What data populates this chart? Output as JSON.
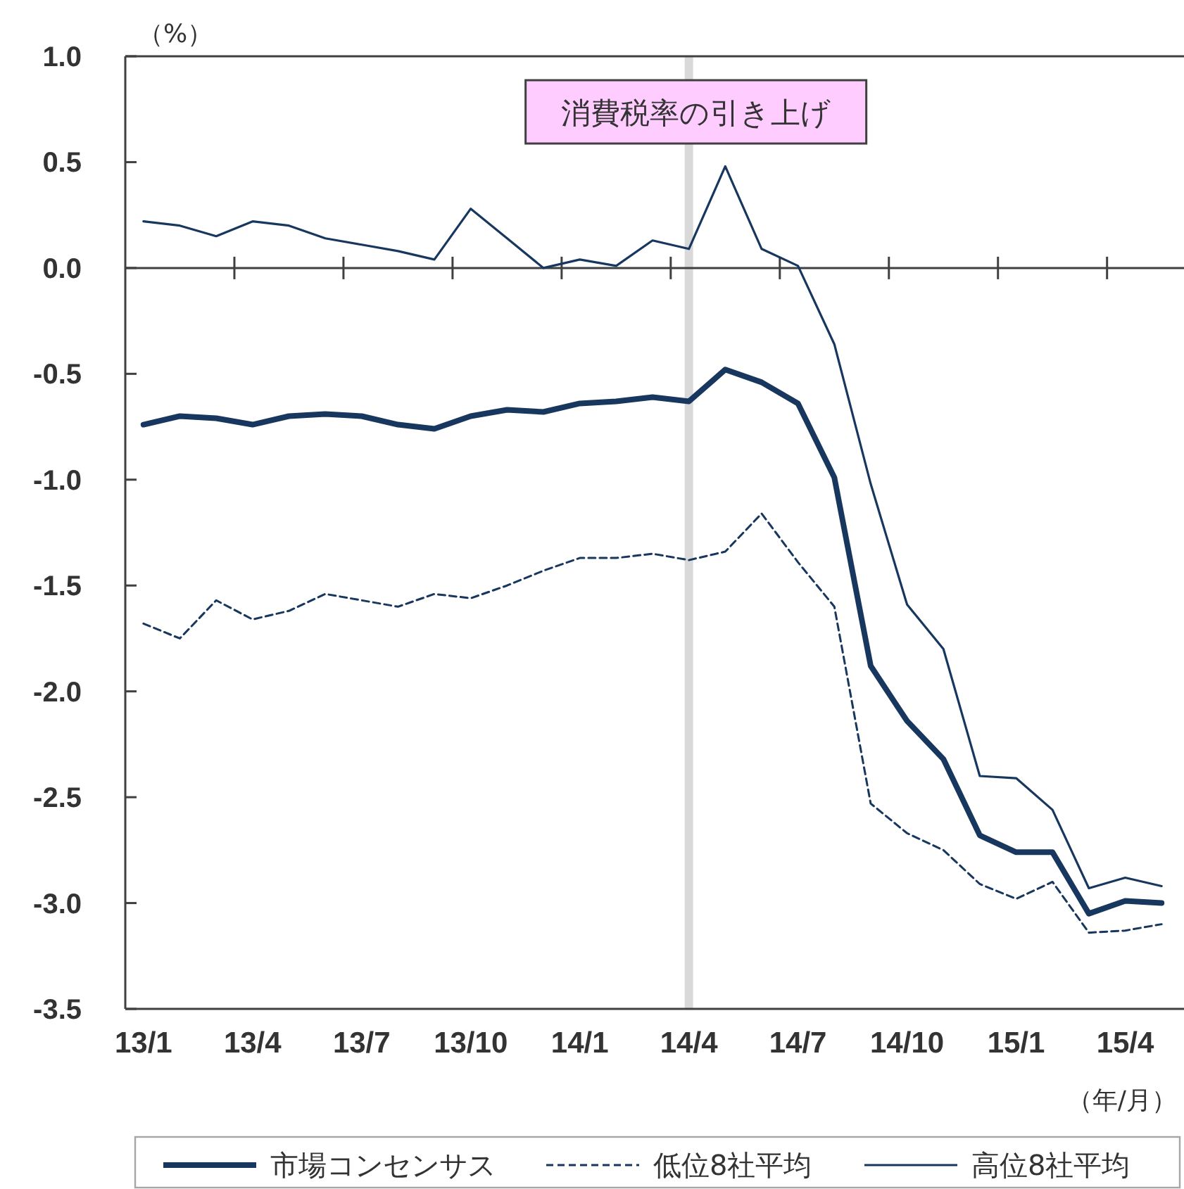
{
  "chart_data": {
    "type": "line",
    "ylabel": "（%）",
    "xlabel": "（年/月）",
    "categories": [
      "13/1",
      null,
      null,
      "13/4",
      null,
      null,
      "13/7",
      null,
      null,
      "13/10",
      null,
      null,
      "14/1",
      null,
      null,
      "14/4",
      null,
      null,
      "14/7",
      null,
      null,
      "14/10",
      null,
      null,
      "15/1",
      null,
      null,
      "15/4",
      null
    ],
    "series": [
      {
        "name": "市場コンセンサス",
        "color": "#17375e",
        "line_style": "solid",
        "values": [
          -0.74,
          -0.7,
          -0.71,
          -0.74,
          -0.7,
          -0.69,
          -0.7,
          -0.74,
          -0.76,
          -0.7,
          -0.67,
          -0.68,
          -0.64,
          -0.63,
          -0.61,
          -0.63,
          -0.48,
          -0.54,
          -0.64,
          -0.99,
          -1.88,
          -2.14,
          -2.32,
          -2.68,
          -2.76,
          -2.76,
          -3.05,
          -2.99,
          -3.0
        ]
      },
      {
        "name": "低位8社平均",
        "color": "#17375e",
        "line_style": "dashed",
        "values": [
          -1.68,
          -1.75,
          -1.57,
          -1.66,
          -1.62,
          -1.54,
          -1.57,
          -1.6,
          -1.54,
          -1.56,
          -1.5,
          -1.43,
          -1.37,
          -1.37,
          -1.35,
          -1.38,
          -1.34,
          -1.16,
          -1.39,
          -1.6,
          -2.53,
          -2.67,
          -2.75,
          -2.91,
          -2.98,
          -2.9,
          -3.14,
          -3.13,
          -3.1
        ]
      },
      {
        "name": "高位8社平均",
        "color": "#17375e",
        "line_style": "solid",
        "values": [
          0.22,
          0.2,
          0.15,
          0.22,
          0.2,
          0.14,
          0.11,
          0.08,
          0.04,
          0.28,
          0.14,
          0.0,
          0.04,
          0.01,
          0.13,
          0.09,
          0.48,
          0.09,
          0.01,
          -0.36,
          -1.02,
          -1.59,
          -1.8,
          -2.4,
          -2.41,
          -2.56,
          -2.93,
          -2.88,
          -2.92
        ]
      }
    ],
    "ylim": [
      -3.5,
      1.0
    ],
    "yticks": [
      {
        "value": 1,
        "label": "1.0"
      },
      0.5,
      {
        "value": 0,
        "label": "0.0"
      },
      -0.5,
      {
        "value": -1,
        "label": "-1.0"
      },
      -1.5,
      {
        "value": -2,
        "label": "-2.0"
      },
      -2.5,
      {
        "value": -3,
        "label": "-3.0"
      },
      -3.5
    ],
    "ref_lines": [
      {
        "axis": "x",
        "value": "14/4",
        "label": "消費税率の引き上げ",
        "color": "#d9d9d9"
      }
    ],
    "legend": "bottom"
  }
}
